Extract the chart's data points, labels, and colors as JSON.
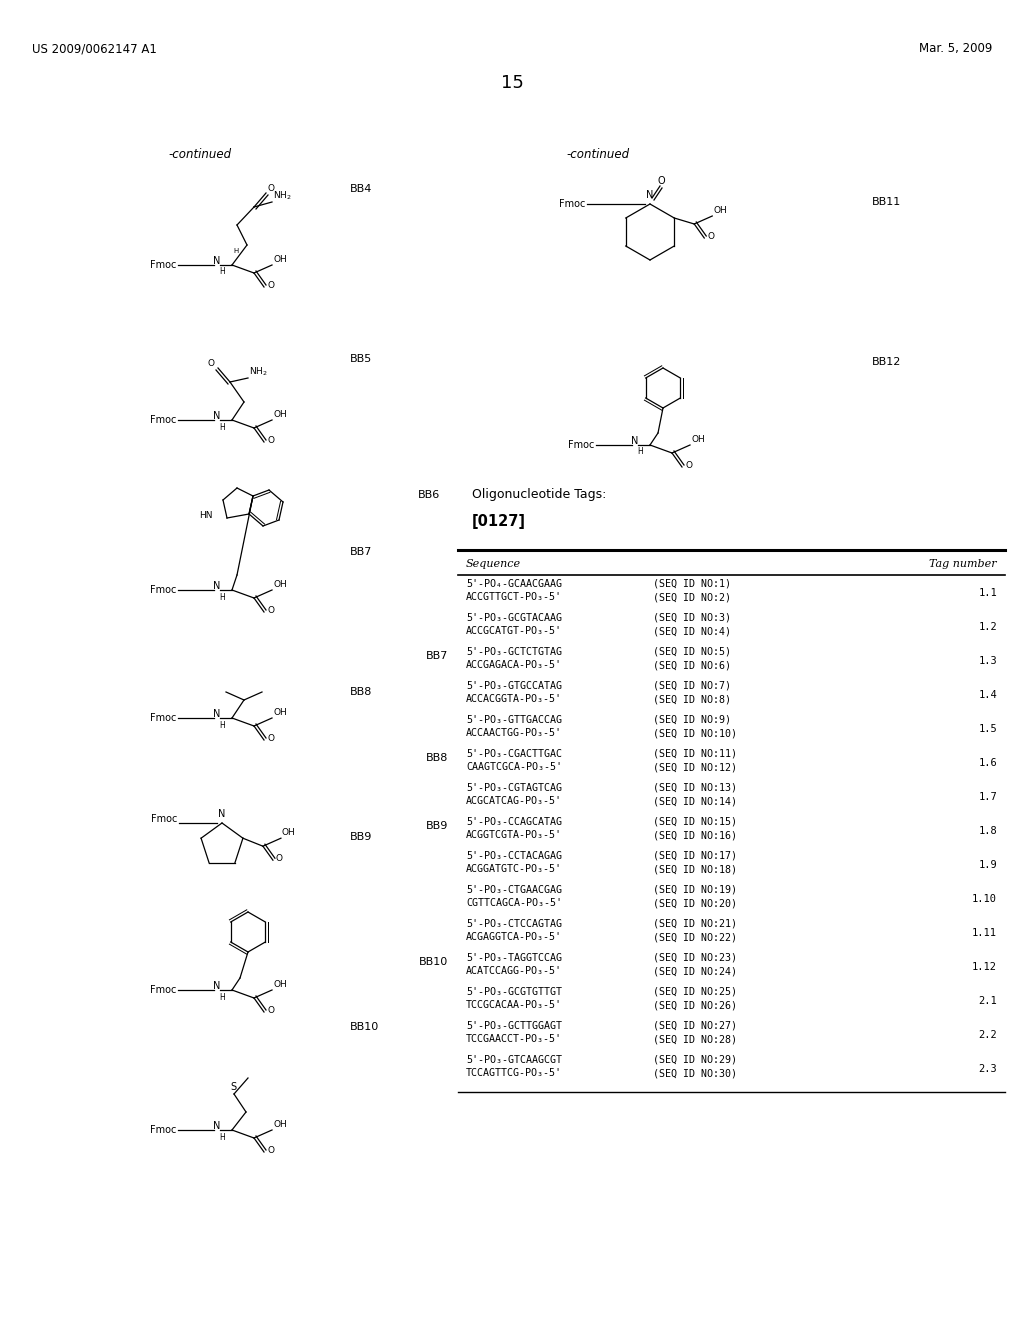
{
  "page_number": "15",
  "header_left": "US 2009/0062147 A1",
  "header_right": "Mar. 5, 2009",
  "background_color": "#ffffff",
  "text_color": "#000000",
  "continued_left": "-continued",
  "continued_right": "-continued",
  "bb4_label": "BB4",
  "bb5_label": "BB5",
  "bb6_label": "BB6",
  "bb7_label": "BB7",
  "bb8_label": "BB8",
  "bb9_label": "BB9",
  "bb10_label": "BB10",
  "bb11_label": "BB11",
  "bb12_label": "BB12",
  "section_title": "Oligonucleotide Tags:",
  "paragraph_ref": "[0127]",
  "table_col1": "Sequence",
  "table_col2": "Tag number",
  "entries": [
    {
      "line1": "5'-PO₄-GCAACGAAG",
      "seqno1": "(SEQ ID NO:1)",
      "line2": "ACCGTTGCT-PO₃-5'",
      "seqno2": "(SEQ ID NO:2)",
      "tag": "1.1",
      "bb": ""
    },
    {
      "line1": "5'-PO₃-GCGTACAAG",
      "seqno1": "(SEQ ID NO:3)",
      "line2": "ACCGCATGT-PO₃-5'",
      "seqno2": "(SEQ ID NO:4)",
      "tag": "1.2",
      "bb": ""
    },
    {
      "line1": "5'-PO₃-GCTCTGTAG",
      "seqno1": "(SEQ ID NO:5)",
      "line2": "ACCGAGACA-PO₃-5'",
      "seqno2": "(SEQ ID NO:6)",
      "tag": "1.3",
      "bb": "BB7"
    },
    {
      "line1": "5'-PO₃-GTGCCATAG",
      "seqno1": "(SEQ ID NO:7)",
      "line2": "ACCACGGTA-PO₃-5'",
      "seqno2": "(SEQ ID NO:8)",
      "tag": "1.4",
      "bb": ""
    },
    {
      "line1": "5'-PO₃-GTTGACCAG",
      "seqno1": "(SEQ ID NO:9)",
      "line2": "ACCAACTGG-PO₃-5'",
      "seqno2": "(SEQ ID NO:10)",
      "tag": "1.5",
      "bb": ""
    },
    {
      "line1": "5'-PO₃-CGACTTGAC",
      "seqno1": "(SEQ ID NO:11)",
      "line2": "CAAGTCGCA-PO₃-5'",
      "seqno2": "(SEQ ID NO:12)",
      "tag": "1.6",
      "bb": "BB8"
    },
    {
      "line1": "5'-PO₃-CGTAGTCAG",
      "seqno1": "(SEQ ID NO:13)",
      "line2": "ACGCATCAG-PO₃-5'",
      "seqno2": "(SEQ ID NO:14)",
      "tag": "1.7",
      "bb": ""
    },
    {
      "line1": "5'-PO₃-CCAGCATAG",
      "seqno1": "(SEQ ID NO:15)",
      "line2": "ACGGTCGTA-PO₃-5'",
      "seqno2": "(SEQ ID NO:16)",
      "tag": "1.8",
      "bb": "BB9"
    },
    {
      "line1": "5'-PO₃-CCTACAGAG",
      "seqno1": "(SEQ ID NO:17)",
      "line2": "ACGGATGTC-PO₃-5'",
      "seqno2": "(SEQ ID NO:18)",
      "tag": "1.9",
      "bb": ""
    },
    {
      "line1": "5'-PO₃-CTGAACGAG",
      "seqno1": "(SEQ ID NO:19)",
      "line2": "CGTTCAGCA-PO₃-5'",
      "seqno2": "(SEQ ID NO:20)",
      "tag": "1.10",
      "bb": ""
    },
    {
      "line1": "5'-PO₃-CTCCAGTAG",
      "seqno1": "(SEQ ID NO:21)",
      "line2": "ACGAGGTCA-PO₃-5'",
      "seqno2": "(SEQ ID NO:22)",
      "tag": "1.11",
      "bb": ""
    },
    {
      "line1": "5'-PO₃-TAGGTCCAG",
      "seqno1": "(SEQ ID NO:23)",
      "line2": "ACATCCAGG-PO₃-5'",
      "seqno2": "(SEQ ID NO:24)",
      "tag": "1.12",
      "bb": "BB10"
    },
    {
      "line1": "5'-PO₃-GCGTGTTGT",
      "seqno1": "(SEQ ID NO:25)",
      "line2": "TCCGCACAA-PO₃-5'",
      "seqno2": "(SEQ ID NO:26)",
      "tag": "2.1",
      "bb": ""
    },
    {
      "line1": "5'-PO₃-GCTTGGAGT",
      "seqno1": "(SEQ ID NO:27)",
      "line2": "TCCGAACCT-PO₃-5'",
      "seqno2": "(SEQ ID NO:28)",
      "tag": "2.2",
      "bb": ""
    },
    {
      "line1": "5'-PO₃-GTCAAGCGT",
      "seqno1": "(SEQ ID NO:29)",
      "line2": "TCCAGTTCG-PO₃-5'",
      "seqno2": "(SEQ ID NO:30)",
      "tag": "2.3",
      "bb": ""
    }
  ]
}
